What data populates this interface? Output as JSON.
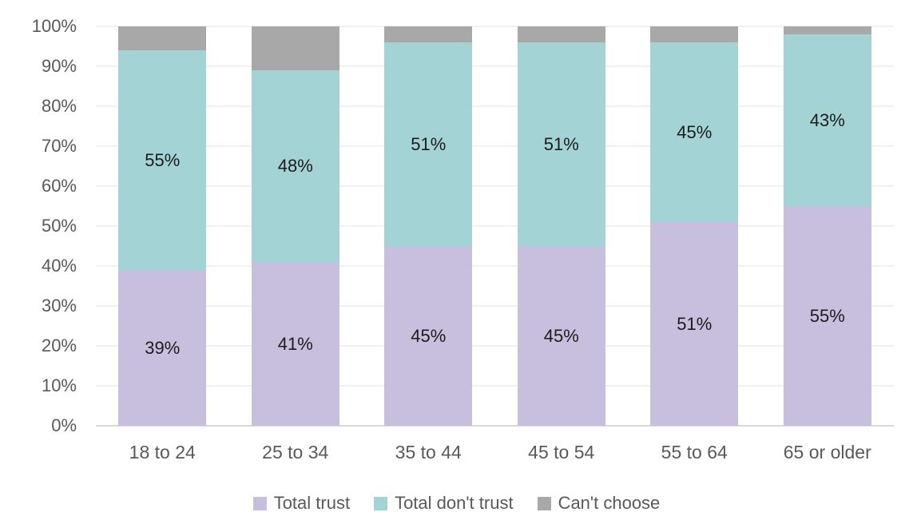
{
  "chart_data": {
    "type": "bar",
    "stacked": true,
    "title": "",
    "categories": [
      "18 to 24",
      "25 to 34",
      "35 to 44",
      "45 to 54",
      "55 to 64",
      "65 or older"
    ],
    "series": [
      {
        "name": "Total trust",
        "color": "#c8bede",
        "values": [
          39,
          41,
          45,
          45,
          51,
          55
        ],
        "data_labels": [
          "39%",
          "41%",
          "45%",
          "45%",
          "51%",
          "55%"
        ]
      },
      {
        "name": "Total don't trust",
        "color": "#a3d3d4",
        "values": [
          55,
          48,
          51,
          51,
          45,
          43
        ],
        "data_labels": [
          "55%",
          "48%",
          "51%",
          "51%",
          "45%",
          "43%"
        ]
      },
      {
        "name": "Can't choose",
        "color": "#a8a8a8",
        "values": [
          6,
          11,
          4,
          4,
          4,
          2
        ],
        "data_labels": [
          "",
          "",
          "",
          "",
          "",
          ""
        ]
      }
    ],
    "y_axis": {
      "min": 0,
      "max": 100,
      "tick_step": 10,
      "tick_labels": [
        "0%",
        "10%",
        "20%",
        "30%",
        "40%",
        "50%",
        "60%",
        "70%",
        "80%",
        "90%",
        "100%"
      ]
    },
    "grid": true,
    "legend_position": "bottom"
  },
  "colors": {
    "background": "#ffffff",
    "axis_text": "#595959",
    "data_label_text": "#1c1c1c",
    "gridline": "#f1f1f1",
    "baseline": "#d8d8d8"
  }
}
